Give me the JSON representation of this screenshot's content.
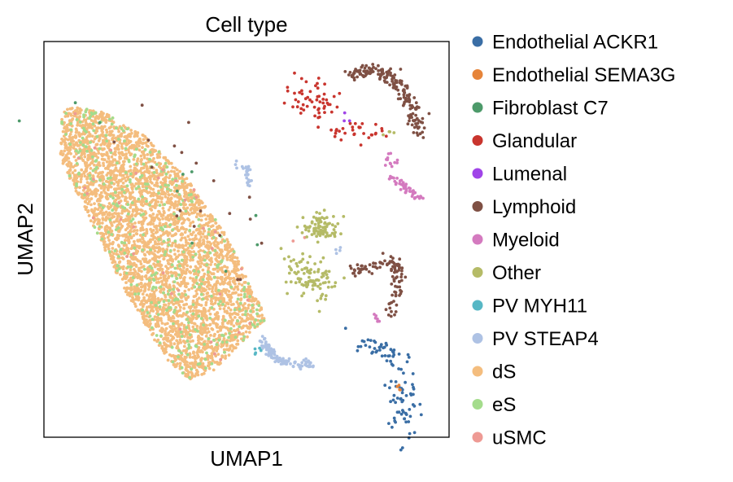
{
  "chart_data": {
    "type": "scatter",
    "title": "Cell type",
    "xlabel": "UMAP1",
    "ylabel": "UMAP2",
    "ticks": "none",
    "grid": false,
    "xlim": [
      0,
      100
    ],
    "ylim": [
      0,
      100
    ],
    "legend_placement": "right-outside",
    "series": [
      {
        "name": "Endothelial ACKR1",
        "color": "#3a6ea5",
        "clusters": [
          {
            "center": [
              82.5,
              22.5
            ],
            "spread": [
              3.2,
              1.3
            ],
            "n": 40,
            "angle": -25
          },
          {
            "center": [
              88.5,
              9.5
            ],
            "spread": [
              1.8,
              6.5
            ],
            "n": 60,
            "angle": 0
          }
        ]
      },
      {
        "name": "Endothelial SEMA3G",
        "color": "#e6843a",
        "clusters": [
          {
            "center": [
              87.8,
              11.5
            ],
            "spread": [
              0.8,
              0.8
            ],
            "n": 4,
            "angle": 0
          }
        ]
      },
      {
        "name": "Fibroblast C7",
        "color": "#4d9a6a",
        "clusters": [
          {
            "center": [
              30,
              60
            ],
            "spread": [
              20,
              6
            ],
            "n": 10,
            "angle": -40
          }
        ]
      },
      {
        "name": "Glandular",
        "color": "#c9352e",
        "clusters": [
          {
            "center": [
              67,
              85
            ],
            "spread": [
              4,
              2.5
            ],
            "n": 55,
            "angle": -30
          },
          {
            "center": [
              76,
              77.5
            ],
            "spread": [
              3.5,
              1.2
            ],
            "n": 30,
            "angle": 0
          }
        ]
      },
      {
        "name": "Lumenal",
        "color": "#a044e8",
        "clusters": [
          {
            "center": [
              74.5,
              80.5
            ],
            "spread": [
              0.6,
              0.6
            ],
            "n": 3,
            "angle": 0
          }
        ]
      },
      {
        "name": "Lymphoid",
        "color": "#7f5044",
        "clusters": [
          {
            "path": [
              [
                75.5,
                91.5
              ],
              [
                81,
                93
              ],
              [
                86,
                91
              ],
              [
                89,
                87
              ],
              [
                91,
                82
              ],
              [
                93,
                77
              ]
            ],
            "spread": 1.6,
            "n": 180
          },
          {
            "path": [
              [
                76,
                42
              ],
              [
                81,
                43
              ],
              [
                86,
                44
              ],
              [
                88.5,
                42
              ]
            ],
            "spread": 1.4,
            "n": 60
          },
          {
            "path": [
              [
                87.5,
                44
              ],
              [
                87.5,
                38
              ],
              [
                86.5,
                33
              ],
              [
                85,
                31
              ]
            ],
            "spread": 1.2,
            "n": 45
          },
          {
            "center": [
              35,
              62
            ],
            "spread": [
              18,
              6
            ],
            "n": 20,
            "angle": -40
          }
        ]
      },
      {
        "name": "Myeloid",
        "color": "#d47abf",
        "clusters": [
          {
            "path": [
              [
                85,
                66
              ],
              [
                89,
                63
              ],
              [
                93.5,
                60
              ]
            ],
            "spread": 0.9,
            "n": 45
          },
          {
            "center": [
              85.5,
              70
            ],
            "spread": [
              1,
              1.2
            ],
            "n": 12,
            "angle": 0
          },
          {
            "center": [
              82.5,
              30
            ],
            "spread": [
              0.8,
              0.6
            ],
            "n": 6,
            "angle": 0
          }
        ]
      },
      {
        "name": "Other",
        "color": "#b5bb67",
        "clusters": [
          {
            "center": [
              68.5,
              53
            ],
            "spread": [
              2.2,
              1.6
            ],
            "n": 90,
            "angle": 0
          },
          {
            "center": [
              66,
              40
            ],
            "spread": [
              3.5,
              2.3
            ],
            "n": 100,
            "angle": -35
          },
          {
            "center": [
              84.5,
              77
            ],
            "spread": [
              0.7,
              0.6
            ],
            "n": 4,
            "angle": 0
          }
        ]
      },
      {
        "name": "PV MYH11",
        "color": "#56b7c5",
        "clusters": [
          {
            "center": [
              53.5,
              22
            ],
            "spread": [
              1,
              0.8
            ],
            "n": 5,
            "angle": 0
          }
        ]
      },
      {
        "name": "PV STEAP4",
        "color": "#aec2e4",
        "clusters": [
          {
            "path": [
              [
                54,
                25
              ],
              [
                57,
                20
              ],
              [
                62,
                18.5
              ],
              [
                66,
                18.5
              ]
            ],
            "spread": 0.9,
            "n": 110
          },
          {
            "path": [
              [
                47,
                69
              ],
              [
                50,
                68
              ],
              [
                51,
                63.5
              ]
            ],
            "spread": 0.6,
            "n": 28
          },
          {
            "center": [
              73,
              47.5
            ],
            "spread": [
              0.6,
              0.6
            ],
            "n": 4,
            "angle": 0
          }
        ]
      },
      {
        "name": "dS",
        "color": "#f4bd7e",
        "clusters": [
          {
            "poly": [
              [
                4.5,
                82
              ],
              [
                7,
                84
              ],
              [
                15,
                82
              ],
              [
                25,
                76
              ],
              [
                35,
                66
              ],
              [
                45,
                51
              ],
              [
                55,
                30
              ],
              [
                50,
                25
              ],
              [
                42,
                17
              ],
              [
                36,
                14.5
              ],
              [
                30,
                20
              ],
              [
                20,
                37
              ],
              [
                10,
                58
              ],
              [
                4,
                70
              ]
            ],
            "n": 3800
          }
        ]
      },
      {
        "name": "eS",
        "color": "#a4dc8c",
        "clusters": [
          {
            "poly": [
              [
                4.5,
                82
              ],
              [
                7,
                84
              ],
              [
                15,
                82
              ],
              [
                25,
                76
              ],
              [
                35,
                66
              ],
              [
                45,
                51
              ],
              [
                55,
                30
              ],
              [
                50,
                25
              ],
              [
                42,
                17
              ],
              [
                36,
                14.5
              ],
              [
                30,
                20
              ],
              [
                20,
                37
              ],
              [
                10,
                58
              ],
              [
                4,
                70
              ]
            ],
            "n": 380
          }
        ]
      },
      {
        "name": "uSMC",
        "color": "#ee9a94",
        "clusters": [
          {
            "poly": [
              [
                4.5,
                82
              ],
              [
                7,
                84
              ],
              [
                15,
                82
              ],
              [
                25,
                76
              ],
              [
                35,
                66
              ],
              [
                45,
                51
              ],
              [
                55,
                30
              ],
              [
                50,
                25
              ],
              [
                42,
                17
              ],
              [
                36,
                14.5
              ],
              [
                30,
                20
              ],
              [
                20,
                37
              ],
              [
                10,
                58
              ],
              [
                4,
                70
              ]
            ],
            "n": 35
          },
          {
            "center": [
              63.5,
              50.5
            ],
            "spread": [
              0.6,
              0.6
            ],
            "n": 2,
            "angle": 0
          }
        ]
      }
    ]
  }
}
